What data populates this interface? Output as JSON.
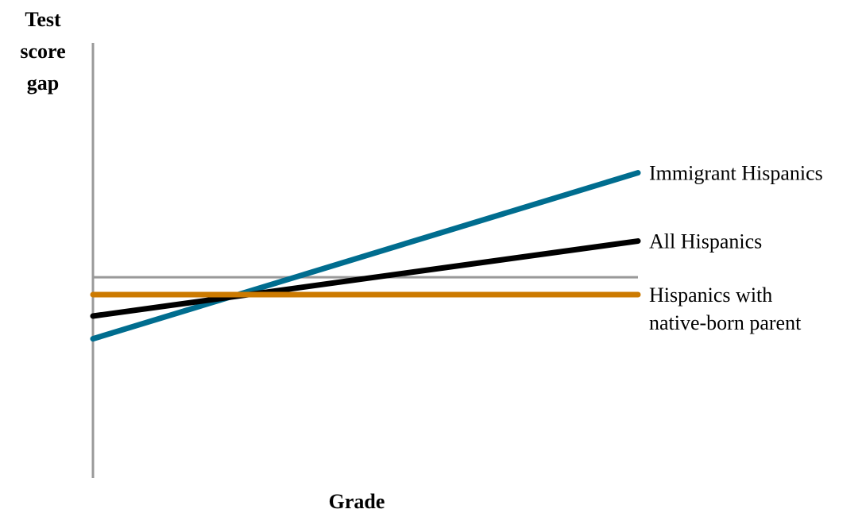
{
  "chart_data": {
    "type": "line",
    "title": "",
    "ylabel": "Test score gap",
    "ylabel_lines": [
      "Test",
      "score",
      "gap"
    ],
    "xlabel": "Grade",
    "x": [
      0,
      1
    ],
    "xlim": [
      0,
      1
    ],
    "ylim": [
      -1.5,
      1.75
    ],
    "grid": false,
    "legend": "labels at line ends (right)",
    "axis_color": "#999999",
    "zero_line": 0,
    "series": [
      {
        "name": "Immigrant Hispanics",
        "name_lines": [
          "Immigrant Hispanics"
        ],
        "values": [
          -0.46,
          0.78
        ],
        "color": "#006d8f"
      },
      {
        "name": "All Hispanics",
        "name_lines": [
          "All Hispanics"
        ],
        "values": [
          -0.29,
          0.27
        ],
        "color": "#000000"
      },
      {
        "name": "Hispanics with native-born parent",
        "name_lines": [
          "Hispanics with",
          "native-born parent"
        ],
        "values": [
          -0.13,
          -0.13
        ],
        "color": "#cc7a00"
      }
    ]
  }
}
